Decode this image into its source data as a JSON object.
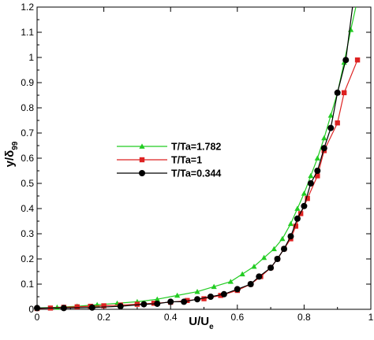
{
  "chart_data": {
    "type": "line",
    "xlabel": {
      "main": "U/U",
      "sub": "e"
    },
    "ylabel": {
      "main": "y/δ",
      "sub": "99"
    },
    "xlim": [
      0,
      1
    ],
    "ylim": [
      0,
      1.2
    ],
    "x_ticks": [
      "0",
      "0.2",
      "0.4",
      "0.6",
      "0.8",
      "1"
    ],
    "y_ticks": [
      "0",
      "0.1",
      "0.2",
      "0.3",
      "0.4",
      "0.5",
      "0.6",
      "0.7",
      "0.8",
      "0.9",
      "1",
      "1.1",
      "1.2"
    ],
    "grid": false,
    "legend_position": "middle-left",
    "series": [
      {
        "name": "T/Ta=1.782",
        "color": "#22cc22",
        "marker": "triangle",
        "points": [
          [
            0.0,
            0.005
          ],
          [
            0.06,
            0.008
          ],
          [
            0.12,
            0.012
          ],
          [
            0.18,
            0.018
          ],
          [
            0.24,
            0.024
          ],
          [
            0.3,
            0.03
          ],
          [
            0.36,
            0.04
          ],
          [
            0.42,
            0.055
          ],
          [
            0.48,
            0.07
          ],
          [
            0.53,
            0.09
          ],
          [
            0.58,
            0.11
          ],
          [
            0.615,
            0.14
          ],
          [
            0.65,
            0.17
          ],
          [
            0.68,
            0.205
          ],
          [
            0.71,
            0.24
          ],
          [
            0.735,
            0.28
          ],
          [
            0.76,
            0.34
          ],
          [
            0.78,
            0.4
          ],
          [
            0.8,
            0.46
          ],
          [
            0.82,
            0.53
          ],
          [
            0.84,
            0.6
          ],
          [
            0.86,
            0.68
          ],
          [
            0.88,
            0.77
          ],
          [
            0.9,
            0.86
          ],
          [
            0.92,
            0.98
          ],
          [
            0.94,
            1.11
          ],
          [
            0.955,
            1.2
          ]
        ]
      },
      {
        "name": "T/Ta=1",
        "color": "#dd2222",
        "marker": "square",
        "points": [
          [
            0.0,
            0.003
          ],
          [
            0.04,
            0.005
          ],
          [
            0.08,
            0.008
          ],
          [
            0.12,
            0.01
          ],
          [
            0.16,
            0.012
          ],
          [
            0.2,
            0.014
          ],
          [
            0.25,
            0.017
          ],
          [
            0.3,
            0.02
          ],
          [
            0.35,
            0.024
          ],
          [
            0.4,
            0.028
          ],
          [
            0.45,
            0.035
          ],
          [
            0.5,
            0.042
          ],
          [
            0.55,
            0.055
          ],
          [
            0.6,
            0.075
          ],
          [
            0.64,
            0.1
          ],
          [
            0.67,
            0.13
          ],
          [
            0.7,
            0.165
          ],
          [
            0.72,
            0.2
          ],
          [
            0.74,
            0.24
          ],
          [
            0.76,
            0.28
          ],
          [
            0.775,
            0.33
          ],
          [
            0.79,
            0.38
          ],
          [
            0.81,
            0.44
          ],
          [
            0.84,
            0.53
          ],
          [
            0.86,
            0.63
          ],
          [
            0.9,
            0.74
          ],
          [
            0.92,
            0.86
          ],
          [
            0.96,
            0.99
          ]
        ]
      },
      {
        "name": "T/Ta=0.344",
        "color": "#000000",
        "marker": "circle",
        "points": [
          [
            0.0,
            0.005
          ],
          [
            0.08,
            0.005
          ],
          [
            0.165,
            0.007
          ],
          [
            0.25,
            0.012
          ],
          [
            0.32,
            0.02
          ],
          [
            0.36,
            0.022
          ],
          [
            0.4,
            0.03
          ],
          [
            0.44,
            0.03
          ],
          [
            0.48,
            0.04
          ],
          [
            0.52,
            0.05
          ],
          [
            0.56,
            0.06
          ],
          [
            0.6,
            0.08
          ],
          [
            0.64,
            0.1
          ],
          [
            0.665,
            0.13
          ],
          [
            0.7,
            0.165
          ],
          [
            0.72,
            0.2
          ],
          [
            0.74,
            0.24
          ],
          [
            0.76,
            0.29
          ],
          [
            0.78,
            0.36
          ],
          [
            0.8,
            0.41
          ],
          [
            0.82,
            0.5
          ],
          [
            0.84,
            0.55
          ],
          [
            0.86,
            0.64
          ],
          [
            0.88,
            0.72
          ],
          [
            0.9,
            0.86
          ],
          [
            0.925,
            0.99
          ],
          [
            0.945,
            1.2
          ]
        ]
      }
    ]
  }
}
